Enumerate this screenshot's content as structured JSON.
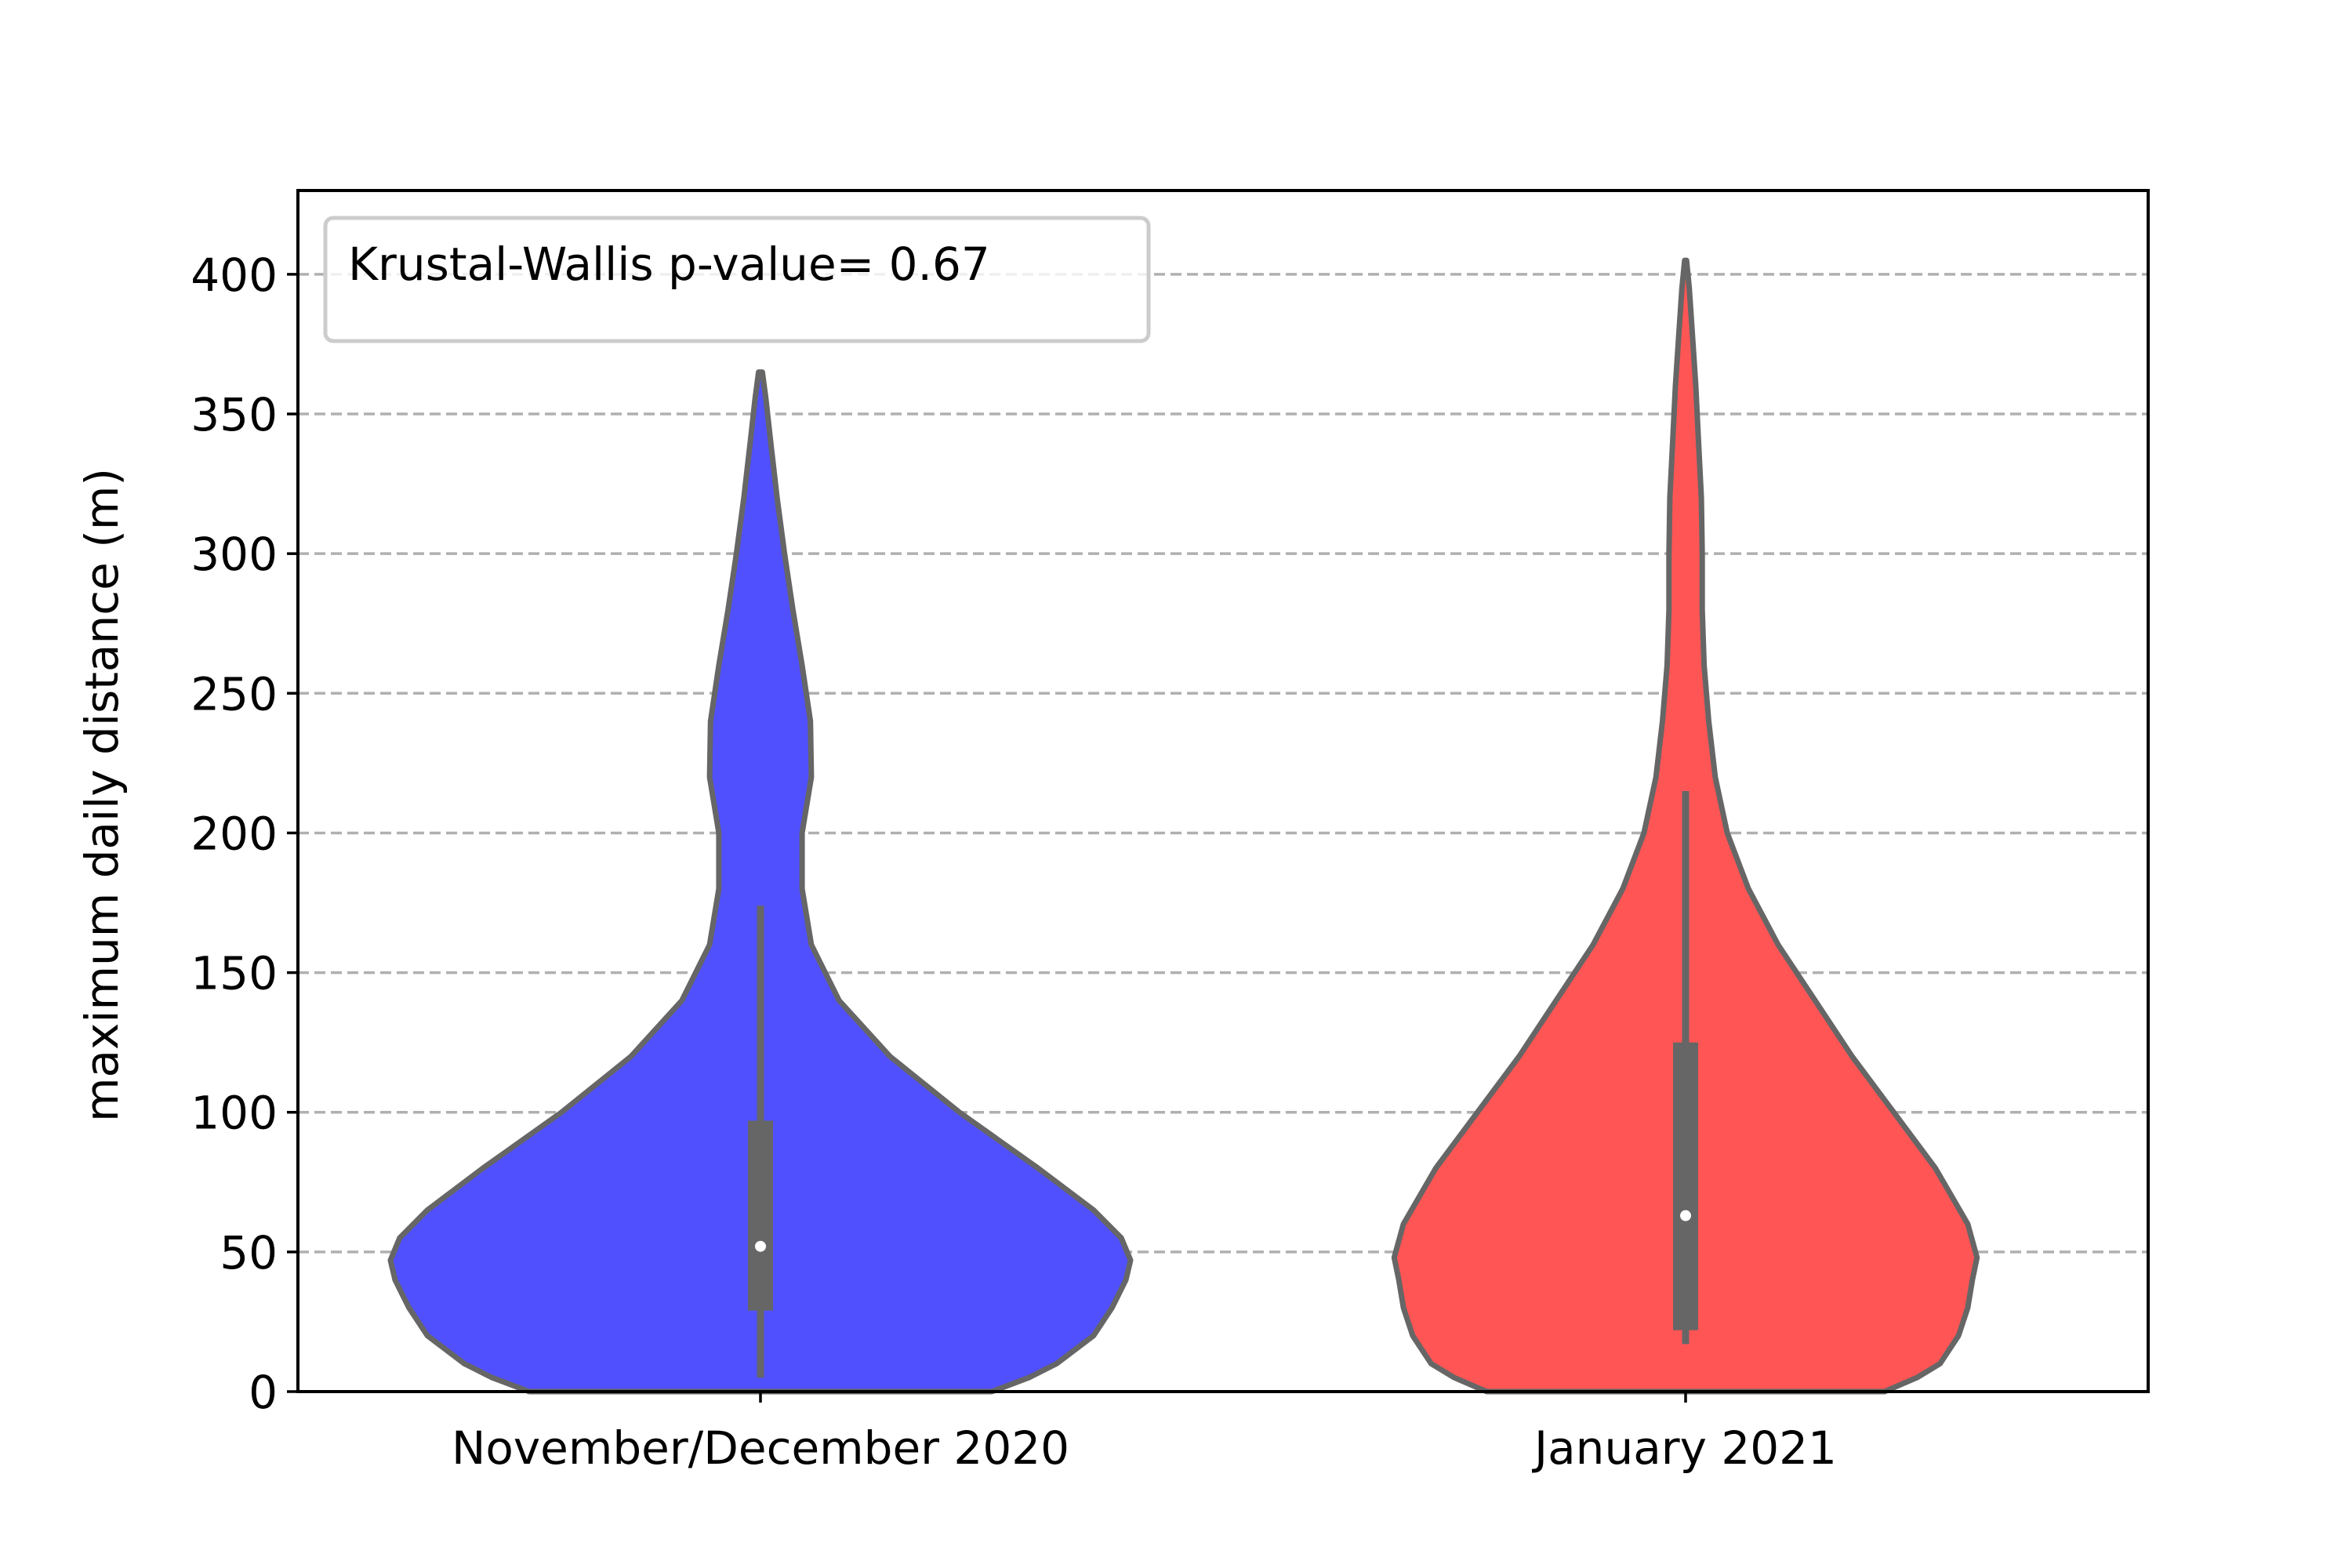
{
  "chart_data": {
    "type": "violin",
    "ylabel": "maximum daily distance (m)",
    "xlabel": "",
    "ylim": [
      0,
      430
    ],
    "yticks": [
      0,
      50,
      100,
      150,
      200,
      250,
      300,
      350,
      400
    ],
    "grid": "horizontal-dashed",
    "legend": {
      "text": "Krustal-Wallis p-value= 0.67",
      "placement": "top-left"
    },
    "categories": [
      "November/December 2020",
      "January 2021"
    ],
    "series": [
      {
        "category": "November/December 2020",
        "color": "#5050ff",
        "density_max_halfwidth": 0.4,
        "density_profile": [
          [
            0,
            0.25
          ],
          [
            5,
            0.29
          ],
          [
            10,
            0.32
          ],
          [
            20,
            0.36
          ],
          [
            30,
            0.38
          ],
          [
            40,
            0.395
          ],
          [
            47,
            0.4
          ],
          [
            55,
            0.39
          ],
          [
            65,
            0.36
          ],
          [
            80,
            0.3
          ],
          [
            100,
            0.215
          ],
          [
            120,
            0.14
          ],
          [
            140,
            0.085
          ],
          [
            160,
            0.055
          ],
          [
            180,
            0.045
          ],
          [
            200,
            0.045
          ],
          [
            220,
            0.055
          ],
          [
            240,
            0.054
          ],
          [
            260,
            0.045
          ],
          [
            280,
            0.035
          ],
          [
            300,
            0.026
          ],
          [
            320,
            0.018
          ],
          [
            340,
            0.011
          ],
          [
            355,
            0.006
          ],
          [
            365,
            0.002
          ]
        ],
        "median": 52,
        "q1": 29,
        "q3": 97,
        "whisker_low": 5,
        "whisker_high": 174
      },
      {
        "category": "January 2021",
        "color": "#ff5555",
        "density_max_halfwidth": 0.315,
        "density_profile": [
          [
            0,
            0.215
          ],
          [
            5,
            0.25
          ],
          [
            10,
            0.275
          ],
          [
            20,
            0.295
          ],
          [
            30,
            0.305
          ],
          [
            40,
            0.31
          ],
          [
            48,
            0.315
          ],
          [
            60,
            0.305
          ],
          [
            80,
            0.27
          ],
          [
            100,
            0.225
          ],
          [
            120,
            0.18
          ],
          [
            140,
            0.14
          ],
          [
            160,
            0.1
          ],
          [
            180,
            0.068
          ],
          [
            200,
            0.045
          ],
          [
            220,
            0.032
          ],
          [
            240,
            0.025
          ],
          [
            260,
            0.02
          ],
          [
            280,
            0.018
          ],
          [
            300,
            0.018
          ],
          [
            320,
            0.017
          ],
          [
            340,
            0.014
          ],
          [
            360,
            0.011
          ],
          [
            380,
            0.007
          ],
          [
            395,
            0.004
          ],
          [
            405,
            0.001
          ]
        ],
        "median": 63,
        "q1": 22,
        "q3": 125,
        "whisker_low": 17,
        "whisker_high": 215
      }
    ]
  }
}
